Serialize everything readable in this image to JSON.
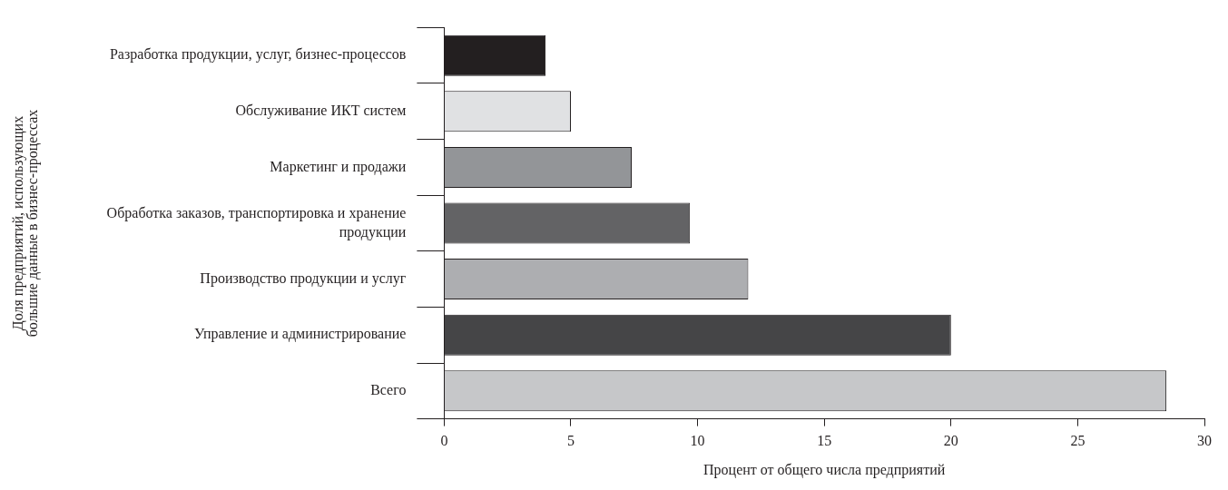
{
  "chart_data": {
    "type": "bar",
    "orientation": "horizontal",
    "categories": [
      "Разработка продукции, услуг, бизнес-процессов",
      "Обслуживание ИКТ систем",
      "Маркетинг и продажи",
      "Обработка заказов, транспортировка и хранение продукции",
      "Производство продукции и услуг",
      "Управление и администрирование",
      "Всего"
    ],
    "values": [
      4,
      5,
      7.4,
      9.7,
      12,
      20,
      28.5
    ],
    "colors": [
      "#231f20",
      "#e0e1e3",
      "#939598",
      "#636365",
      "#adaeb1",
      "#454547",
      "#c6c7c9"
    ],
    "xlim": [
      0,
      30
    ],
    "xticks": [
      0,
      5,
      10,
      15,
      20,
      25,
      30
    ],
    "xlabel": "Процент от общего числа предприятий",
    "ylabel": "Доля предприятий, использующих большие данные в бизнес-процессах",
    "grid": false,
    "legend": false
  }
}
